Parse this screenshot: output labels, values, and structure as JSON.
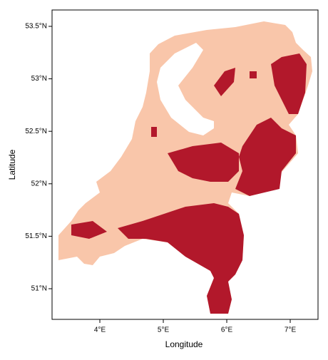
{
  "chart_data": {
    "type": "map",
    "xlabel": "Longitude",
    "ylabel": "Latitude",
    "xlim": [
      3.247,
      7.438
    ],
    "ylim": [
      50.708,
      53.656
    ],
    "xticks": [
      {
        "value": 4,
        "label": "4°E"
      },
      {
        "value": 5,
        "label": "5°E"
      },
      {
        "value": 6,
        "label": "6°E"
      },
      {
        "value": 7,
        "label": "7°E"
      }
    ],
    "yticks": [
      {
        "value": 51,
        "label": "51°N"
      },
      {
        "value": 51.5,
        "label": "51.5°N"
      },
      {
        "value": 52,
        "label": "52°N"
      },
      {
        "value": 52.5,
        "label": "52.5°N"
      },
      {
        "value": 53,
        "label": "53°N"
      },
      {
        "value": 53.5,
        "label": "53.5°N"
      }
    ]
  }
}
